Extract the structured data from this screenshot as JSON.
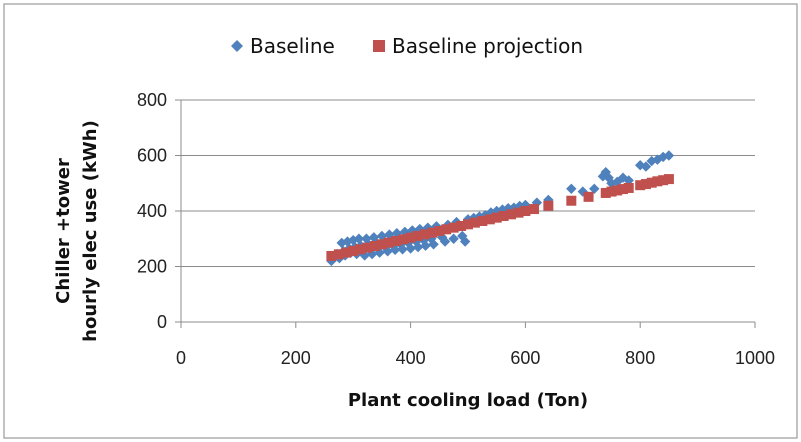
{
  "chart_data": {
    "type": "scatter",
    "title": "",
    "xlabel": "Plant cooling load  (Ton)",
    "ylabel_lines": [
      "Chiller +tower",
      "hourly elec use (kWh)"
    ],
    "xlim": [
      0,
      1000
    ],
    "ylim": [
      0,
      800
    ],
    "xticks": [
      0,
      200,
      400,
      600,
      800,
      1000
    ],
    "yticks": [
      0,
      200,
      400,
      600,
      800
    ],
    "grid": "horizontal",
    "legend_position": "top",
    "series": [
      {
        "name": "Baseline",
        "marker": "diamond",
        "color": "#4F81BD",
        "points": [
          [
            262,
            220
          ],
          [
            268,
            235
          ],
          [
            272,
            245
          ],
          [
            276,
            230
          ],
          [
            280,
            285
          ],
          [
            283,
            255
          ],
          [
            286,
            240
          ],
          [
            290,
            290
          ],
          [
            293,
            265
          ],
          [
            296,
            250
          ],
          [
            300,
            295
          ],
          [
            303,
            270
          ],
          [
            306,
            245
          ],
          [
            310,
            300
          ],
          [
            313,
            275
          ],
          [
            316,
            255
          ],
          [
            320,
            240
          ],
          [
            323,
            300
          ],
          [
            326,
            280
          ],
          [
            330,
            260
          ],
          [
            333,
            245
          ],
          [
            336,
            305
          ],
          [
            340,
            285
          ],
          [
            343,
            265
          ],
          [
            346,
            250
          ],
          [
            350,
            310
          ],
          [
            353,
            290
          ],
          [
            356,
            270
          ],
          [
            360,
            255
          ],
          [
            363,
            315
          ],
          [
            366,
            295
          ],
          [
            370,
            275
          ],
          [
            373,
            260
          ],
          [
            376,
            320
          ],
          [
            380,
            300
          ],
          [
            383,
            280
          ],
          [
            386,
            262
          ],
          [
            390,
            325
          ],
          [
            393,
            305
          ],
          [
            396,
            285
          ],
          [
            400,
            265
          ],
          [
            403,
            330
          ],
          [
            406,
            310
          ],
          [
            410,
            290
          ],
          [
            413,
            270
          ],
          [
            416,
            335
          ],
          [
            420,
            315
          ],
          [
            423,
            295
          ],
          [
            426,
            275
          ],
          [
            430,
            340
          ],
          [
            433,
            320
          ],
          [
            436,
            300
          ],
          [
            440,
            280
          ],
          [
            445,
            345
          ],
          [
            450,
            330
          ],
          [
            455,
            305
          ],
          [
            460,
            290
          ],
          [
            465,
            350
          ],
          [
            470,
            340
          ],
          [
            475,
            300
          ],
          [
            480,
            360
          ],
          [
            485,
            345
          ],
          [
            490,
            310
          ],
          [
            495,
            290
          ],
          [
            500,
            370
          ],
          [
            510,
            375
          ],
          [
            520,
            380
          ],
          [
            530,
            385
          ],
          [
            540,
            395
          ],
          [
            550,
            400
          ],
          [
            560,
            405
          ],
          [
            570,
            410
          ],
          [
            580,
            412
          ],
          [
            590,
            418
          ],
          [
            600,
            422
          ],
          [
            620,
            430
          ],
          [
            640,
            440
          ],
          [
            680,
            480
          ],
          [
            700,
            470
          ],
          [
            720,
            480
          ],
          [
            735,
            525
          ],
          [
            740,
            540
          ],
          [
            745,
            520
          ],
          [
            750,
            500
          ],
          [
            760,
            505
          ],
          [
            770,
            520
          ],
          [
            780,
            510
          ],
          [
            800,
            565
          ],
          [
            810,
            560
          ],
          [
            820,
            580
          ],
          [
            830,
            585
          ],
          [
            840,
            595
          ],
          [
            850,
            600
          ]
        ]
      },
      {
        "name": "Baseline projection",
        "marker": "square",
        "color": "#C0504D",
        "points": [
          [
            262,
            238
          ],
          [
            275,
            244
          ],
          [
            288,
            250
          ],
          [
            300,
            256
          ],
          [
            312,
            262
          ],
          [
            325,
            268
          ],
          [
            338,
            274
          ],
          [
            350,
            280
          ],
          [
            362,
            286
          ],
          [
            375,
            292
          ],
          [
            388,
            298
          ],
          [
            400,
            304
          ],
          [
            412,
            310
          ],
          [
            425,
            316
          ],
          [
            438,
            322
          ],
          [
            450,
            328
          ],
          [
            462,
            334
          ],
          [
            475,
            340
          ],
          [
            488,
            346
          ],
          [
            500,
            352
          ],
          [
            512,
            358
          ],
          [
            525,
            364
          ],
          [
            538,
            370
          ],
          [
            550,
            376
          ],
          [
            562,
            382
          ],
          [
            575,
            388
          ],
          [
            588,
            394
          ],
          [
            600,
            400
          ],
          [
            615,
            407
          ],
          [
            640,
            419
          ],
          [
            680,
            437
          ],
          [
            710,
            451
          ],
          [
            740,
            465
          ],
          [
            750,
            470
          ],
          [
            760,
            474
          ],
          [
            770,
            479
          ],
          [
            780,
            483
          ],
          [
            800,
            493
          ],
          [
            810,
            497
          ],
          [
            820,
            502
          ],
          [
            830,
            507
          ],
          [
            840,
            511
          ],
          [
            850,
            515
          ]
        ]
      }
    ]
  }
}
